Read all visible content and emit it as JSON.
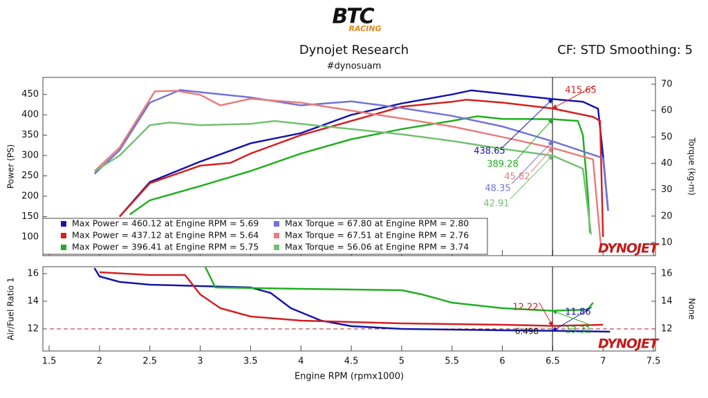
{
  "header": {
    "logo": "BTC",
    "logo_sub": "RACING",
    "title": "Dynojet Research",
    "subtitle": "#dynosuam",
    "settings": "CF: STD Smoothing: 5",
    "watermark": "DYNOJET"
  },
  "chart_data": [
    {
      "type": "line",
      "ylabel": "Power (PS)",
      "y2label": "Torque (kg-m)",
      "xlim": [
        1.438,
        7.52
      ],
      "xticks": [
        1.5,
        2.0,
        2.5,
        3.0,
        3.5,
        4.0,
        4.5,
        5.0,
        5.5,
        6.0,
        6.5,
        7.0,
        7.5
      ],
      "ylim": [
        54,
        492
      ],
      "yticks": [
        100,
        150,
        200,
        250,
        300,
        350,
        400,
        450
      ],
      "y2lim": [
        5,
        72.6
      ],
      "y2ticks": [
        10,
        20,
        30,
        40,
        50,
        60,
        70
      ],
      "series": [
        {
          "name": "Max Power = 460.12 at Engine RPM = 5.69",
          "color": "#1414a8",
          "cursor_value": 438.65,
          "x": [
            2.2,
            2.5,
            2.8,
            3.0,
            3.5,
            4.0,
            4.5,
            5.0,
            5.5,
            5.69,
            6.0,
            6.5,
            6.8,
            6.95,
            7.0,
            7.05
          ],
          "values": [
            150,
            235,
            265,
            285,
            330,
            355,
            400,
            428,
            450,
            460.12,
            452,
            438.65,
            432,
            415,
            300,
            165
          ]
        },
        {
          "name": "Max Power = 437.12 at Engine RPM = 5.64",
          "color": "#d41f1f",
          "cursor_value": 415.65,
          "x": [
            2.2,
            2.5,
            3.0,
            3.3,
            3.5,
            4.0,
            4.5,
            5.0,
            5.5,
            5.64,
            6.0,
            6.5,
            6.9,
            6.97,
            7.0
          ],
          "values": [
            150,
            232,
            275,
            282,
            305,
            350,
            385,
            420,
            432,
            437.12,
            430,
            415.65,
            395,
            385,
            100
          ]
        },
        {
          "name": "Max Power = 396.41 at Engine RPM = 5.75",
          "color": "#1fae1f",
          "cursor_value": 389.28,
          "x": [
            2.3,
            2.5,
            3.0,
            3.5,
            4.0,
            4.5,
            5.0,
            5.5,
            5.75,
            6.0,
            6.5,
            6.75,
            6.8,
            6.85,
            6.87
          ],
          "values": [
            155,
            190,
            225,
            262,
            305,
            340,
            365,
            385,
            396.41,
            390,
            389.28,
            385,
            350,
            200,
            110
          ]
        },
        {
          "name": "Max Torque = 67.80 at Engine RPM = 2.80",
          "color": "#7272d8",
          "axis": "y2",
          "cursor_value": 48.35,
          "x": [
            1.95,
            2.2,
            2.5,
            2.8,
            3.0,
            3.5,
            4.0,
            4.5,
            5.0,
            5.5,
            6.0,
            6.5,
            7.0,
            7.05
          ],
          "values": [
            36,
            45,
            63,
            67.8,
            67,
            65,
            62,
            63.5,
            61,
            58,
            54,
            48.35,
            42,
            22
          ]
        },
        {
          "name": "Max Torque = 67.51 at Engine RPM = 2.76",
          "color": "#e87c7c",
          "axis": "y2",
          "cursor_value": 45.82,
          "x": [
            1.95,
            2.2,
            2.55,
            2.76,
            3.0,
            3.2,
            3.5,
            4.0,
            4.5,
            5.0,
            5.5,
            6.0,
            6.5,
            6.9,
            6.98
          ],
          "values": [
            37,
            46,
            67.3,
            67.51,
            66,
            62,
            64.5,
            63,
            60,
            57,
            54,
            50,
            45.82,
            41.5,
            8
          ]
        },
        {
          "name": "Max Torque = 56.06 at Engine RPM = 3.74",
          "color": "#72c072",
          "axis": "y2",
          "cursor_value": 42.91,
          "x": [
            1.95,
            2.2,
            2.5,
            2.7,
            3.0,
            3.5,
            3.74,
            4.0,
            4.5,
            5.0,
            5.5,
            6.0,
            6.5,
            6.8,
            6.88
          ],
          "values": [
            37,
            43,
            54.5,
            55.5,
            54.5,
            55,
            56.06,
            55,
            53,
            51,
            48.5,
            45.5,
            42.91,
            38,
            13
          ]
        }
      ]
    },
    {
      "type": "line",
      "xlabel": "Engine RPM (rpmx1000)",
      "ylabel": "Air/Fuel Ratio 1",
      "y2label": "None",
      "xlim": [
        1.438,
        7.52
      ],
      "xticks": [
        1.5,
        2.0,
        2.5,
        3.0,
        3.5,
        4.0,
        4.5,
        5.0,
        5.5,
        6.0,
        6.5,
        7.0,
        7.5
      ],
      "ylim": [
        10.4,
        16.5
      ],
      "yticks": [
        12,
        14,
        16
      ],
      "y2lim": [
        10.4,
        16.5
      ],
      "y2ticks": [
        12,
        14,
        16
      ],
      "reference_line": 12,
      "cursor_x": 6.498,
      "series": [
        {
          "color": "#1414a8",
          "cursor_value": 11.86,
          "x": [
            1.95,
            2.0,
            2.2,
            2.5,
            3.0,
            3.5,
            3.7,
            3.9,
            4.2,
            4.5,
            5.0,
            6.0,
            6.5,
            7.07
          ],
          "values": [
            16.4,
            15.8,
            15.4,
            15.2,
            15.1,
            15.0,
            14.6,
            13.5,
            12.6,
            12.2,
            12.0,
            11.9,
            11.86,
            11.8
          ]
        },
        {
          "color": "#d41f1f",
          "cursor_value": 12.22,
          "x": [
            2.0,
            2.5,
            2.85,
            3.0,
            3.2,
            3.5,
            4.0,
            4.5,
            5.0,
            6.0,
            6.5,
            7.0
          ],
          "values": [
            16.1,
            15.9,
            15.9,
            14.5,
            13.5,
            12.9,
            12.6,
            12.5,
            12.4,
            12.3,
            12.22,
            12.3
          ]
        },
        {
          "color": "#1fae1f",
          "cursor_value": 13.31,
          "x": [
            3.05,
            3.15,
            4.0,
            5.0,
            5.2,
            5.5,
            6.0,
            6.5,
            6.85,
            6.9
          ],
          "values": [
            16.5,
            15.0,
            14.9,
            14.8,
            14.5,
            13.9,
            13.5,
            13.31,
            13.4,
            13.9
          ]
        }
      ]
    }
  ]
}
